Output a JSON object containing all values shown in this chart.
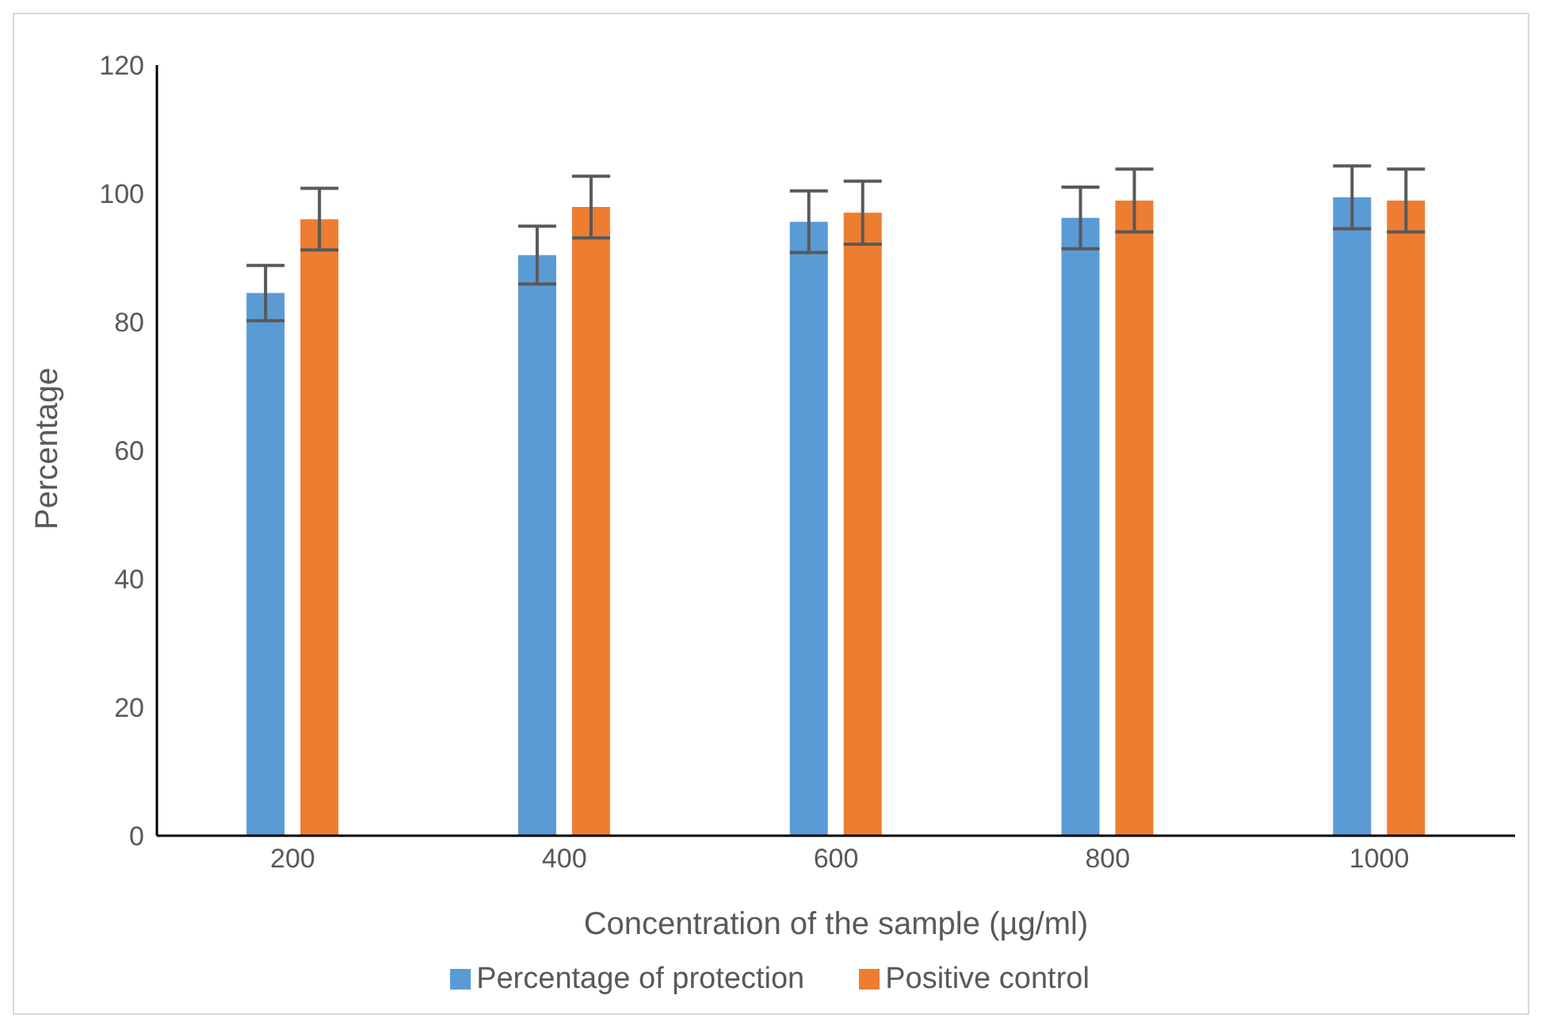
{
  "chart_data": {
    "type": "bar",
    "xlabel": "Concentration of the sample (µg/ml)",
    "ylabel": "Percentage",
    "categories": [
      "200",
      "400",
      "600",
      "800",
      "1000"
    ],
    "series": [
      {
        "name": "Percentage of protection",
        "color": "#5b9bd5",
        "values": [
          84.5,
          90.4,
          95.6,
          96.2,
          99.4
        ],
        "errors": [
          4.3,
          4.5,
          4.8,
          4.8,
          4.9
        ]
      },
      {
        "name": "Positive control",
        "color": "#ed7d31",
        "values": [
          96,
          97.9,
          97,
          98.9,
          98.9
        ],
        "errors": [
          4.8,
          4.8,
          4.9,
          4.9,
          4.9
        ]
      }
    ],
    "ylim": [
      0,
      120
    ],
    "yticks": [
      0,
      20,
      40,
      60,
      80,
      100,
      120
    ],
    "grid": false,
    "legend": "bottom"
  }
}
